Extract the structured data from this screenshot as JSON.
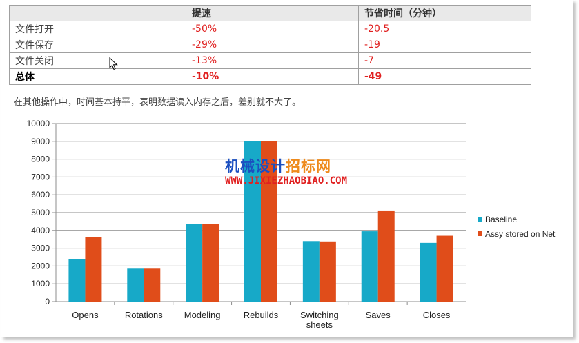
{
  "table": {
    "headers": [
      "",
      "提速",
      "节省时间（分钟）"
    ],
    "rows": [
      {
        "op": "文件打开",
        "speedup": "-50%",
        "saved": "-20.5"
      },
      {
        "op": "文件保存",
        "speedup": "-29%",
        "saved": "-19"
      },
      {
        "op": "文件关闭",
        "speedup": "-13%",
        "saved": "-7"
      },
      {
        "op": "总体",
        "speedup": "-10%",
        "saved": "-49"
      }
    ]
  },
  "note": "在其他操作中，时间基本持平，表明数据读入内存之后，差别就不大了。",
  "watermark": {
    "line1_blue": "机械设计",
    "line1_orange": "招标网",
    "line2": "WWW.JIXIEZHAOBIAO.COM"
  },
  "colors": {
    "baseline": "#17a9c8",
    "net": "#e04d1a",
    "red_text": "#e02020"
  },
  "chart_data": {
    "type": "bar",
    "categories": [
      "Opens",
      "Rotations",
      "Modeling",
      "Rebuilds",
      "Switching sheets",
      "Saves",
      "Closes"
    ],
    "series": [
      {
        "name": "Baseline",
        "values": [
          2400,
          1850,
          4350,
          9000,
          3400,
          3950,
          3300
        ]
      },
      {
        "name": "Assy stored on Net",
        "values": [
          3620,
          1850,
          4350,
          9000,
          3380,
          5080,
          3700
        ]
      }
    ],
    "yticks": [
      "0",
      "1000",
      "2000",
      "3000",
      "4000",
      "5000",
      "6000",
      "7000",
      "8000",
      "9000",
      "10000"
    ],
    "ylim": [
      0,
      10000
    ],
    "grid": true,
    "legend_position": "right"
  }
}
